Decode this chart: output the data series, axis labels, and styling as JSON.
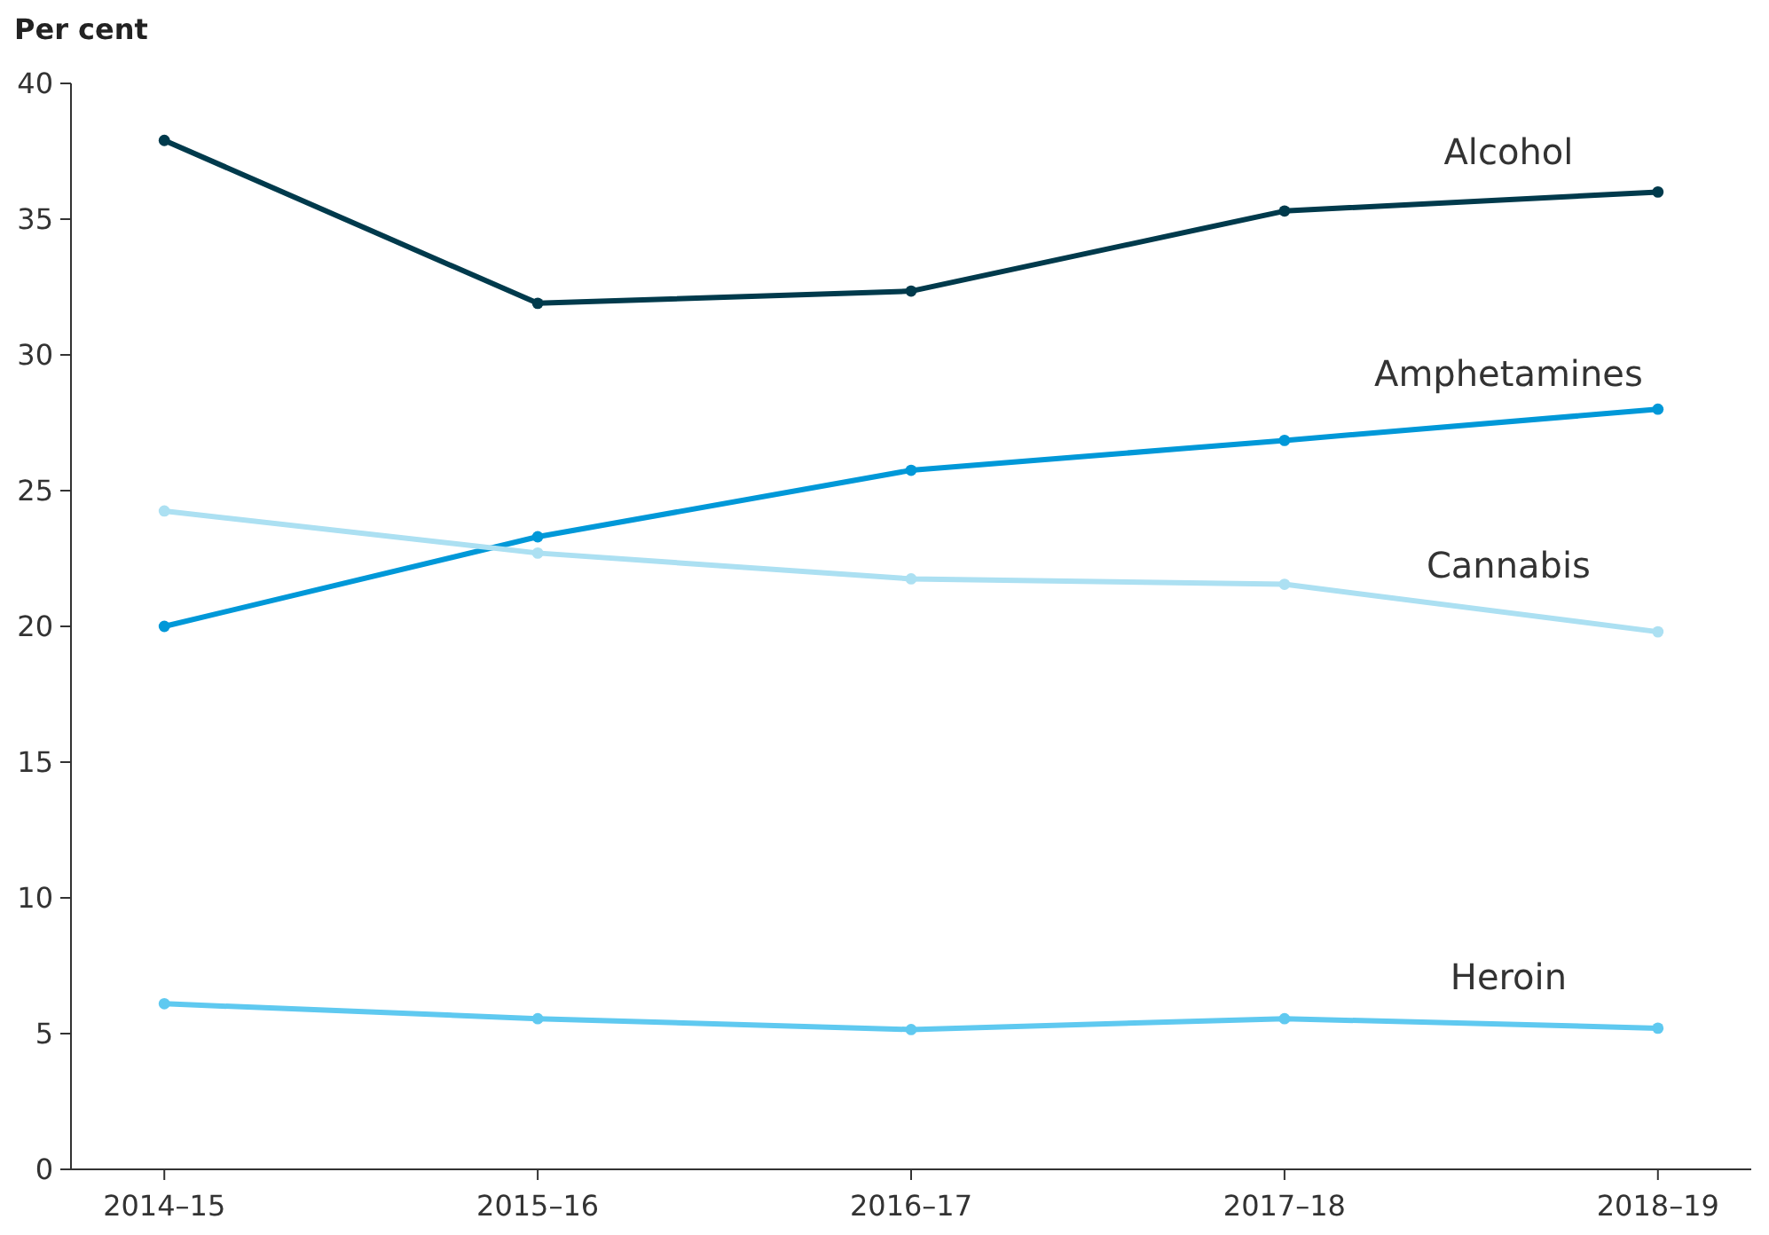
{
  "chart_data": {
    "type": "line",
    "ylabel": "Per cent",
    "categories": [
      "2014–15",
      "2015–16",
      "2016–17",
      "2017–18",
      "2018–19"
    ],
    "ylim": [
      0,
      40
    ],
    "yticks": [
      0,
      5,
      10,
      15,
      20,
      25,
      30,
      35,
      40
    ],
    "grid": false,
    "legend": false,
    "marker": "circle",
    "line_style": "solid",
    "series": [
      {
        "name": "Alcohol",
        "color": "#003a4c",
        "values": [
          37.9,
          31.9,
          32.35,
          35.3,
          36.0
        ]
      },
      {
        "name": "Amphetamines",
        "color": "#0098d8",
        "values": [
          20.0,
          23.3,
          25.75,
          26.85,
          28.0
        ]
      },
      {
        "name": "Cannabis",
        "color": "#ace0f2",
        "values": [
          24.25,
          22.7,
          21.75,
          21.55,
          19.8
        ]
      },
      {
        "name": "Heroin",
        "color": "#5fc9f0",
        "values": [
          6.1,
          5.55,
          5.15,
          5.55,
          5.2
        ]
      }
    ]
  }
}
